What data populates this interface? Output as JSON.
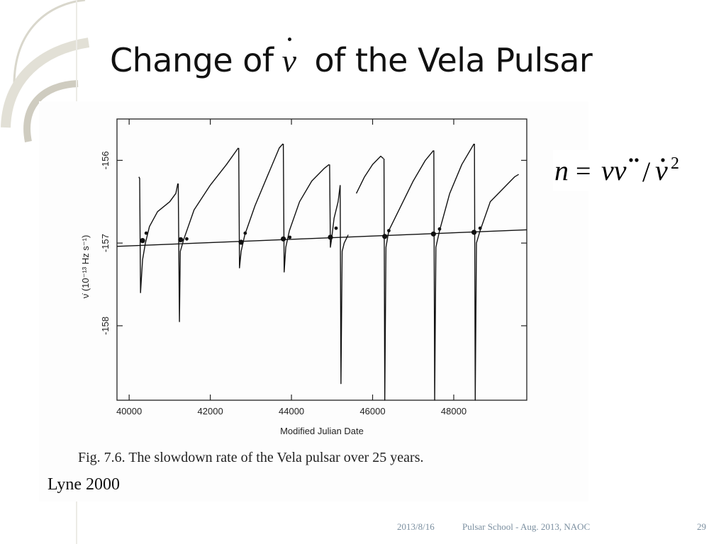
{
  "slide": {
    "title_before": "Change of",
    "title_symbol": "ν",
    "title_after": "of the Vela Pulsar",
    "formula": "n = ν ν̈ / ν̇²",
    "credit": "Lyne 2000"
  },
  "footer": {
    "date": "2013/8/16",
    "event": "Pulsar School  - Aug. 2013, NAOC",
    "page": "29"
  },
  "figure": {
    "caption": "Fig. 7.6. The slowdown rate of the Vela pulsar over 25 years."
  },
  "chart_data": {
    "type": "line",
    "xlabel": "Modified Julian Date",
    "ylabel": "ν̇ (10⁻¹³ Hz s⁻¹)",
    "xlim": [
      39700,
      49800
    ],
    "ylim": [
      -158.9,
      -155.5
    ],
    "x_ticks": [
      40000,
      42000,
      44000,
      46000,
      48000
    ],
    "y_ticks": [
      -156,
      -157,
      -158
    ],
    "trend_line": {
      "x": [
        39700,
        49800
      ],
      "y": [
        -157.04,
        -156.84
      ]
    },
    "glitch_recoveries": [
      [
        [
          40240,
          -156.2
        ],
        [
          40260,
          -156.22
        ],
        [
          40280,
          -157.6
        ],
        [
          40330,
          -157.2
        ],
        [
          40400,
          -157.0
        ],
        [
          40500,
          -156.8
        ],
        [
          40700,
          -156.62
        ],
        [
          41000,
          -156.5
        ],
        [
          41150,
          -156.4
        ],
        [
          41200,
          -156.28
        ]
      ],
      [
        [
          41210,
          -156.28
        ],
        [
          41240,
          -157.95
        ],
        [
          41260,
          -157.1
        ],
        [
          41350,
          -156.95
        ],
        [
          41600,
          -156.6
        ],
        [
          42000,
          -156.3
        ],
        [
          42400,
          -156.05
        ],
        [
          42690,
          -155.85
        ]
      ],
      [
        [
          42700,
          -155.85
        ],
        [
          42720,
          -157.3
        ],
        [
          42760,
          -157.1
        ],
        [
          42850,
          -156.9
        ],
        [
          43100,
          -156.55
        ],
        [
          43400,
          -156.2
        ],
        [
          43700,
          -155.85
        ],
        [
          43790,
          -155.8
        ]
      ],
      [
        [
          43800,
          -155.8
        ],
        [
          43820,
          -157.35
        ],
        [
          43860,
          -157.05
        ],
        [
          43950,
          -156.85
        ],
        [
          44200,
          -156.5
        ],
        [
          44500,
          -156.25
        ],
        [
          44800,
          -156.1
        ],
        [
          44930,
          -156.05
        ]
      ],
      [
        [
          44940,
          -156.05
        ],
        [
          44960,
          -157.05
        ],
        [
          44990,
          -156.95
        ],
        [
          45050,
          -156.7
        ],
        [
          45150,
          -156.5
        ],
        [
          45200,
          -156.3
        ]
      ],
      [
        [
          45200,
          -156.3
        ],
        [
          45220,
          -158.7
        ],
        [
          45250,
          -157.1
        ],
        [
          45300,
          -157.0
        ],
        [
          45400,
          -156.9
        ]
      ],
      [
        [
          45600,
          -156.4
        ],
        [
          45800,
          -156.2
        ],
        [
          46000,
          -156.05
        ],
        [
          46200,
          -155.95
        ],
        [
          46270,
          -155.98
        ]
      ],
      [
        [
          46280,
          -155.98
        ],
        [
          46300,
          -158.9
        ],
        [
          46330,
          -157.05
        ],
        [
          46400,
          -156.85
        ],
        [
          46700,
          -156.55
        ],
        [
          47000,
          -156.25
        ],
        [
          47300,
          -156.0
        ],
        [
          47500,
          -155.88
        ]
      ],
      [
        [
          47510,
          -155.88
        ],
        [
          47530,
          -158.9
        ],
        [
          47560,
          -157.05
        ],
        [
          47650,
          -156.85
        ],
        [
          47900,
          -156.4
        ],
        [
          48200,
          -156.05
        ],
        [
          48500,
          -155.8
        ]
      ],
      [
        [
          48510,
          -155.8
        ],
        [
          48530,
          -158.9
        ],
        [
          48560,
          -157.0
        ],
        [
          48650,
          -156.85
        ],
        [
          48900,
          -156.5
        ],
        [
          49200,
          -156.35
        ],
        [
          49500,
          -156.2
        ],
        [
          49600,
          -156.17
        ]
      ]
    ],
    "markers": [
      {
        "x": 40330,
        "y": -156.97
      },
      {
        "x": 40420,
        "y": -156.88
      },
      {
        "x": 41270,
        "y": -156.96
      },
      {
        "x": 41420,
        "y": -156.95
      },
      {
        "x": 42760,
        "y": -156.99
      },
      {
        "x": 42860,
        "y": -156.88
      },
      {
        "x": 43800,
        "y": -156.95
      },
      {
        "x": 43960,
        "y": -156.93
      },
      {
        "x": 44960,
        "y": -156.93
      },
      {
        "x": 45100,
        "y": -156.82
      },
      {
        "x": 46300,
        "y": -156.92
      },
      {
        "x": 46400,
        "y": -156.85
      },
      {
        "x": 47500,
        "y": -156.89
      },
      {
        "x": 47650,
        "y": -156.83
      },
      {
        "x": 48500,
        "y": -156.87
      },
      {
        "x": 48650,
        "y": -156.82
      }
    ]
  }
}
